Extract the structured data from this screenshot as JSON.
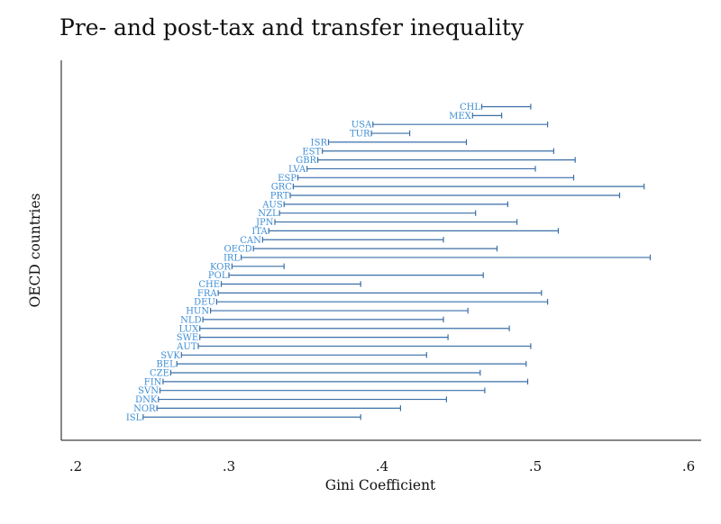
{
  "chart_data": {
    "type": "range",
    "title": "Pre- and post-tax and transfer inequality",
    "xlabel": "Gini Coefficient",
    "ylabel": "OECD countries",
    "xlim": [
      0.2,
      0.6
    ],
    "xticks": [
      0.2,
      0.3,
      0.4,
      0.5,
      0.6
    ],
    "xtick_labels": [
      ".2",
      ".3",
      ".4",
      ".5",
      ".6"
    ],
    "grid": false,
    "series_colors": {
      "bar": "#3a6fa8",
      "label": "#3f8fd6"
    },
    "countries": [
      {
        "name": "CHL",
        "post": 0.465,
        "pre": 0.497
      },
      {
        "name": "MEX",
        "post": 0.459,
        "pre": 0.478
      },
      {
        "name": "USA",
        "post": 0.394,
        "pre": 0.508
      },
      {
        "name": "TUR",
        "post": 0.393,
        "pre": 0.418
      },
      {
        "name": "ISR",
        "post": 0.365,
        "pre": 0.455
      },
      {
        "name": "EST",
        "post": 0.361,
        "pre": 0.512
      },
      {
        "name": "GBR",
        "post": 0.358,
        "pre": 0.526
      },
      {
        "name": "LVA",
        "post": 0.351,
        "pre": 0.5
      },
      {
        "name": "ESP",
        "post": 0.345,
        "pre": 0.525
      },
      {
        "name": "GRC",
        "post": 0.342,
        "pre": 0.571
      },
      {
        "name": "PRT",
        "post": 0.34,
        "pre": 0.555
      },
      {
        "name": "AUS",
        "post": 0.336,
        "pre": 0.482
      },
      {
        "name": "NZL",
        "post": 0.333,
        "pre": 0.461
      },
      {
        "name": "JPN",
        "post": 0.33,
        "pre": 0.488
      },
      {
        "name": "ITA",
        "post": 0.326,
        "pre": 0.515
      },
      {
        "name": "CAN",
        "post": 0.322,
        "pre": 0.44
      },
      {
        "name": "OECD",
        "post": 0.316,
        "pre": 0.475
      },
      {
        "name": "IRL",
        "post": 0.308,
        "pre": 0.575
      },
      {
        "name": "KOR",
        "post": 0.302,
        "pre": 0.336
      },
      {
        "name": "POL",
        "post": 0.3,
        "pre": 0.466
      },
      {
        "name": "CHE",
        "post": 0.295,
        "pre": 0.386
      },
      {
        "name": "FRA",
        "post": 0.293,
        "pre": 0.504
      },
      {
        "name": "DEU",
        "post": 0.292,
        "pre": 0.508
      },
      {
        "name": "HUN",
        "post": 0.288,
        "pre": 0.456
      },
      {
        "name": "NLD",
        "post": 0.283,
        "pre": 0.44
      },
      {
        "name": "LUX",
        "post": 0.281,
        "pre": 0.483
      },
      {
        "name": "SWE",
        "post": 0.281,
        "pre": 0.443
      },
      {
        "name": "AUT",
        "post": 0.28,
        "pre": 0.497
      },
      {
        "name": "SVK",
        "post": 0.269,
        "pre": 0.429
      },
      {
        "name": "BEL",
        "post": 0.266,
        "pre": 0.494
      },
      {
        "name": "CZE",
        "post": 0.262,
        "pre": 0.464
      },
      {
        "name": "FIN",
        "post": 0.257,
        "pre": 0.495
      },
      {
        "name": "SVN",
        "post": 0.255,
        "pre": 0.467
      },
      {
        "name": "DNK",
        "post": 0.254,
        "pre": 0.442
      },
      {
        "name": "NOR",
        "post": 0.253,
        "pre": 0.412
      },
      {
        "name": "ISL",
        "post": 0.244,
        "pre": 0.386
      }
    ]
  }
}
